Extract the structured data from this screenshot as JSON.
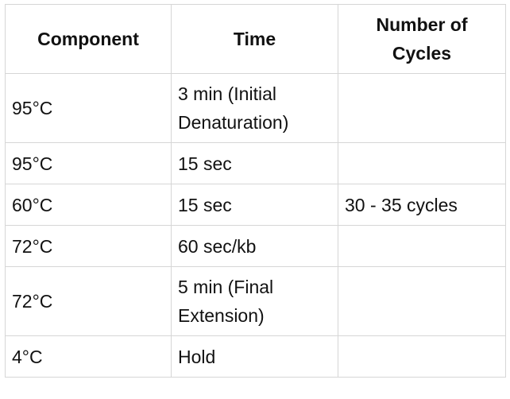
{
  "table": {
    "headers": [
      "Component",
      "Time",
      "Number of Cycles"
    ],
    "rows": [
      [
        "95°C",
        "3 min (Initial Denaturation)",
        ""
      ],
      [
        "95°C",
        "15 sec",
        ""
      ],
      [
        "60°C",
        "15 sec",
        "30 - 35 cycles"
      ],
      [
        "72°C",
        "60 sec/kb",
        ""
      ],
      [
        "72°C",
        "5 min (Final Extension)",
        ""
      ],
      [
        "4°C",
        "Hold",
        ""
      ]
    ]
  }
}
